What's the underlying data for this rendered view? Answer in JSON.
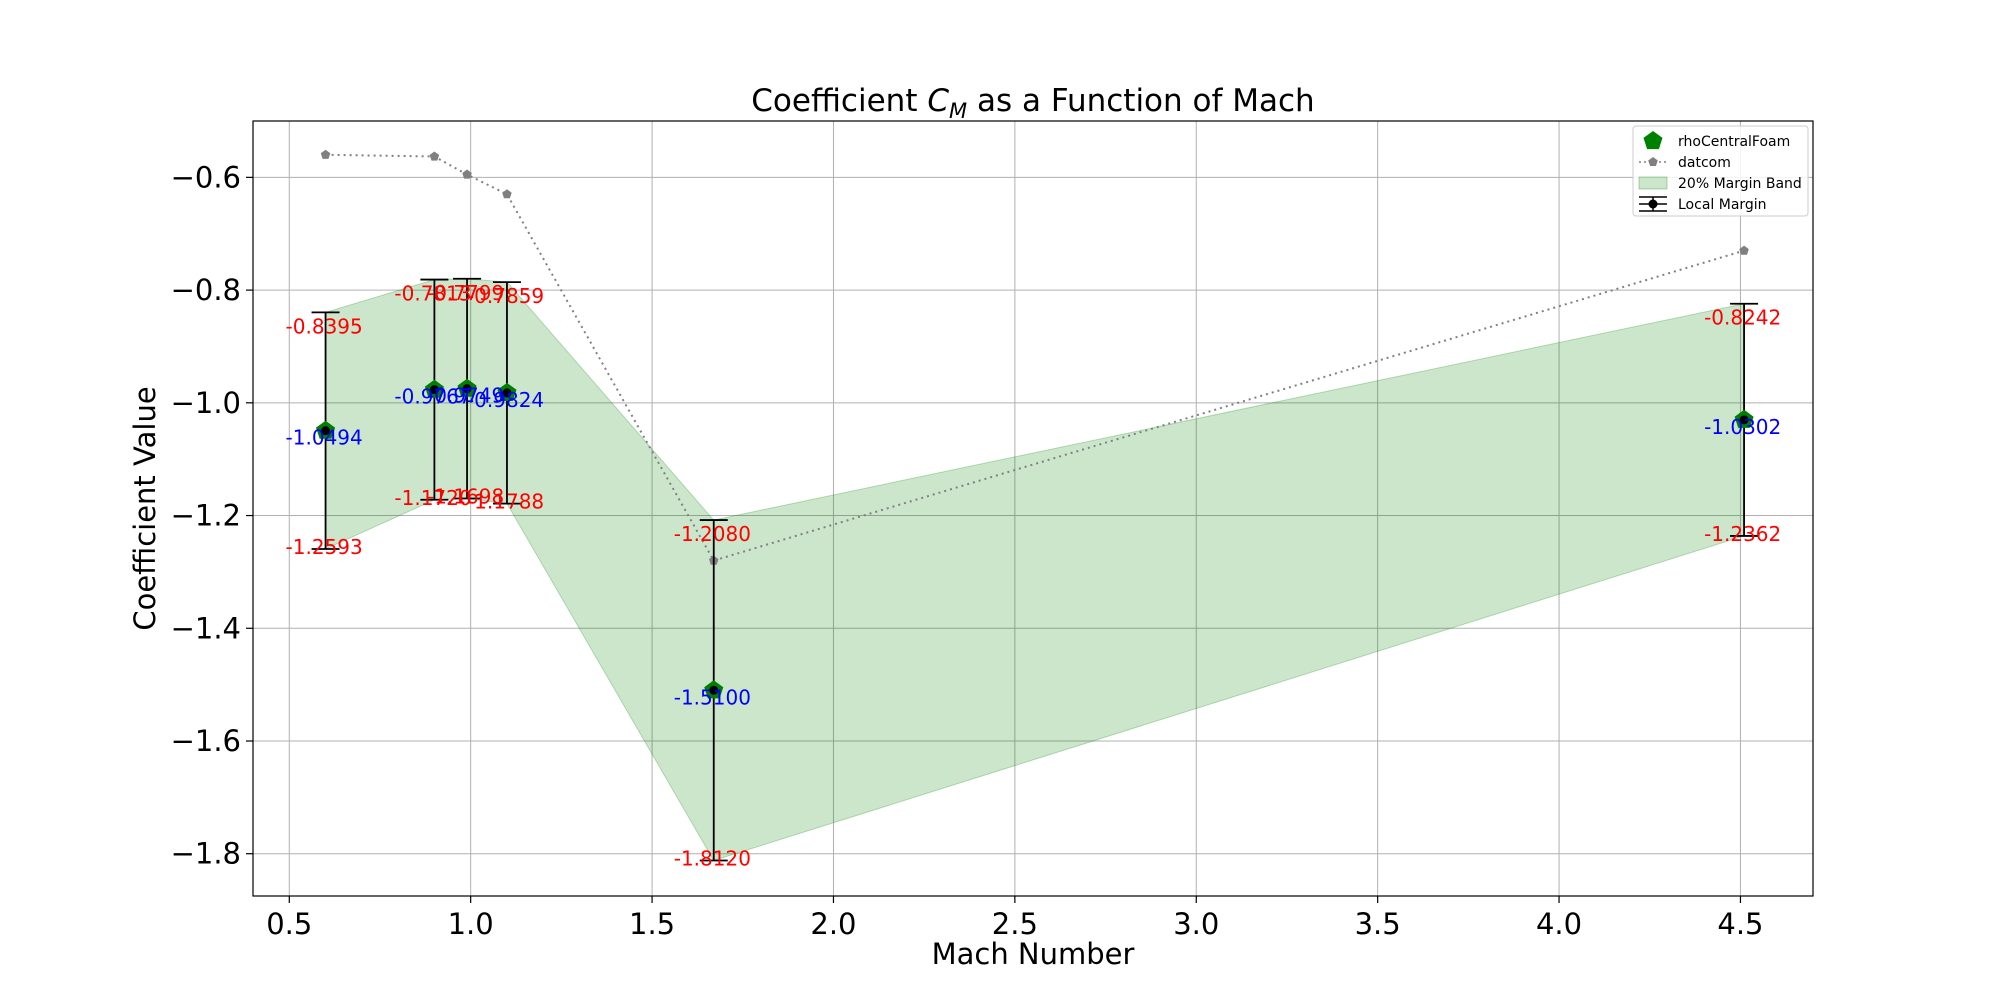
{
  "chart_data": {
    "type": "line",
    "title_prefix": "Coefficient ",
    "title_symbol": "C",
    "title_subscript": "M",
    "title_suffix": " as a Function of Mach",
    "xlabel": "Mach Number",
    "ylabel": "Coefficient Value",
    "xlim": [
      0.4,
      4.7
    ],
    "ylim": [
      -1.875,
      -0.5
    ],
    "xticks": [
      0.5,
      1.0,
      1.5,
      2.0,
      2.5,
      3.0,
      3.5,
      4.0,
      4.5
    ],
    "xtick_labels": [
      "0.5",
      "1.0",
      "1.5",
      "2.0",
      "2.5",
      "3.0",
      "3.5",
      "4.0",
      "4.5"
    ],
    "yticks": [
      -0.6,
      -0.8,
      -1.0,
      -1.2,
      -1.4,
      -1.6,
      -1.8
    ],
    "ytick_labels": [
      "−0.6",
      "−0.8",
      "−1.0",
      "−1.2",
      "−1.4",
      "−1.6",
      "−1.8"
    ],
    "grid": true,
    "legend_position": "top-right",
    "x": [
      0.6,
      0.9,
      0.99,
      1.1,
      1.67,
      4.51
    ],
    "series": [
      {
        "name": "rhoCentralFoam",
        "marker": "pentagon",
        "color": "#008000",
        "values": [
          -1.0494,
          -0.9767,
          -0.9749,
          -0.9824,
          -1.51,
          -1.0302
        ]
      },
      {
        "name": "datcom",
        "marker": "pentagon-small",
        "color": "#808080",
        "linestyle": "dotted",
        "values": [
          -0.56,
          -0.563,
          -0.595,
          -0.63,
          -1.28,
          -0.73
        ]
      }
    ],
    "band": {
      "name": "20% Margin Band",
      "color": "#008000",
      "upper": [
        -0.8395,
        -0.7813,
        -0.7799,
        -0.7859,
        -1.208,
        -0.8242
      ],
      "lower": [
        -1.2593,
        -1.172,
        -1.1698,
        -1.1788,
        -1.812,
        -1.2362
      ]
    },
    "errorbars": {
      "name": "Local Margin",
      "color": "#000000"
    },
    "annotations": {
      "center": [
        "-1.0494",
        "-0.9767",
        "-0.9749",
        "-0.9824",
        "-1.5100",
        "-1.0302"
      ],
      "upper": [
        "-0.8395",
        "-0.7813",
        "-0.7799",
        "-0.7859",
        "-1.2080",
        "-0.8242"
      ],
      "lower": [
        "-1.2593",
        "-1.1720",
        "-1.1698",
        "-1.1788",
        "-1.8120",
        "-1.2362"
      ],
      "center_color": "#0000ff",
      "bound_color": "#ff0000"
    }
  }
}
